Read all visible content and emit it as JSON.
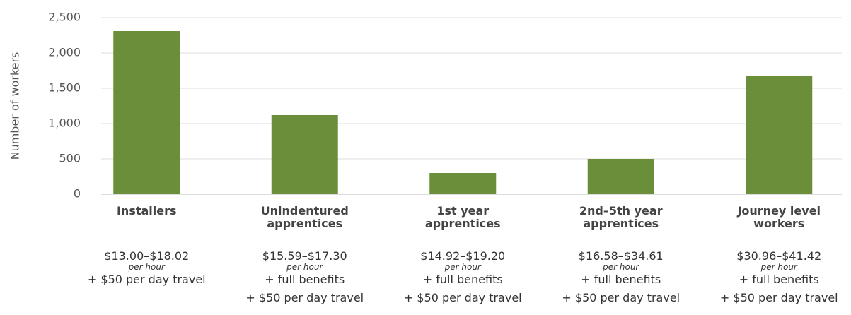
{
  "chart_data": {
    "type": "bar",
    "y_label": "Number of workers",
    "categories": [
      "Installers",
      "Unindentured apprentices",
      "1st year apprentices",
      "2nd–5th year apprentices",
      "Journey level workers"
    ],
    "values": [
      2310,
      1120,
      300,
      500,
      1670
    ],
    "color": "#6b8e3a",
    "ylim": [
      0,
      2500
    ],
    "yticks": [
      0,
      500,
      {
        "value": 1000,
        "label": "1,000"
      },
      {
        "value": 1500,
        "label": "1,500"
      },
      {
        "value": 2000,
        "label": "2,000"
      },
      {
        "value": 2500,
        "label": "2,500"
      }
    ],
    "grid": true,
    "wage_notes": [
      {
        "range": "$13.00–$18.02",
        "unit": "per hour",
        "extras": [
          "+ $50 per day travel"
        ]
      },
      {
        "range": "$15.59–$17.30",
        "unit": "per hour",
        "extras": [
          "+ full benefits",
          "+ $50 per day travel"
        ]
      },
      {
        "range": "$14.92–$19.20",
        "unit": "per hour",
        "extras": [
          "+ full benefits",
          "+ $50 per day travel"
        ]
      },
      {
        "range": "$16.58–$34.61",
        "unit": "per hour",
        "extras": [
          "+ full benefits",
          "+ $50 per day travel"
        ]
      },
      {
        "range": "$30.96–$41.42",
        "unit": "per hour",
        "extras": [
          "+ full benefits",
          "+ $50 per day travel"
        ]
      }
    ]
  }
}
